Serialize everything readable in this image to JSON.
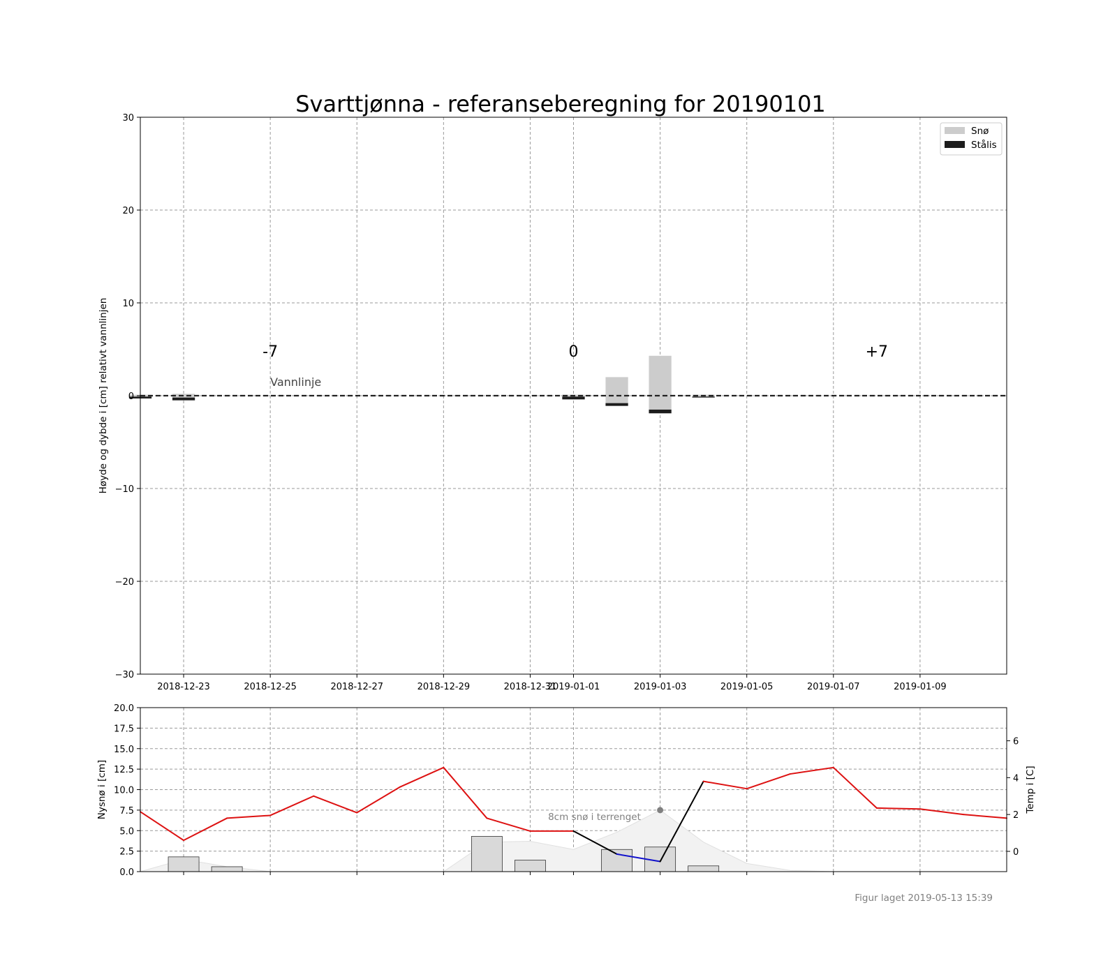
{
  "chart_data": [
    {
      "type": "bar",
      "title": "Svarttjønna - referanseberegning for 20190101",
      "ylabel": "Høyde og dybde i [cm] relativt vannlinjen",
      "ylim": [
        -30,
        30
      ],
      "yticks": [
        "−30",
        "−20",
        "−10",
        "0",
        "10",
        "20",
        "30"
      ],
      "ytick_values": [
        -30,
        -20,
        -10,
        0,
        10,
        20,
        30
      ],
      "x_range": [
        "2018-12-22",
        "2019-01-11"
      ],
      "xtick_labels": [
        "2018-12-23",
        "2018-12-25",
        "2018-12-27",
        "2018-12-29",
        "2018-12-31",
        "2019-01-01",
        "2019-01-03",
        "2019-01-05",
        "2019-01-07",
        "2019-01-09"
      ],
      "xtick_dates": [
        "2018-12-23",
        "2018-12-25",
        "2018-12-27",
        "2018-12-29",
        "2018-12-31",
        "2019-01-01",
        "2019-01-03",
        "2019-01-05",
        "2019-01-07",
        "2019-01-09"
      ],
      "grid": true,
      "legend": {
        "placement": "top-right",
        "entries": [
          {
            "label": "Snø",
            "color": "#cccccc"
          },
          {
            "label": "Stålis",
            "color": "#1c1c1c"
          }
        ]
      },
      "series": [
        {
          "name": "Snø",
          "color": "#cccccc",
          "points": [
            {
              "date": "2018-12-22",
              "top": 0.1,
              "bottom": -0.1
            },
            {
              "date": "2018-12-23",
              "top": 0.2,
              "bottom": -0.2
            },
            {
              "date": "2019-01-01",
              "top": 0.1,
              "bottom": -0.1
            },
            {
              "date": "2019-01-02",
              "top": 2.0,
              "bottom": -0.8
            },
            {
              "date": "2019-01-03",
              "top": 4.3,
              "bottom": -1.5
            },
            {
              "date": "2019-01-04",
              "top": 0.1,
              "bottom": -0.1
            }
          ]
        },
        {
          "name": "Stålis",
          "color": "#1c1c1c",
          "points": [
            {
              "date": "2018-12-22",
              "top": -0.1,
              "bottom": -0.3
            },
            {
              "date": "2018-12-23",
              "top": -0.2,
              "bottom": -0.5
            },
            {
              "date": "2019-01-01",
              "top": -0.1,
              "bottom": -0.4
            },
            {
              "date": "2019-01-02",
              "top": -0.8,
              "bottom": -1.1
            },
            {
              "date": "2019-01-03",
              "top": -1.5,
              "bottom": -1.9
            },
            {
              "date": "2019-01-04",
              "top": -0.1,
              "bottom": -0.2
            }
          ]
        }
      ],
      "waterline": {
        "label": "Vannlinje",
        "y": 0
      },
      "day_markers": [
        {
          "label": "-7",
          "date": "2018-12-25"
        },
        {
          "label": "0",
          "date": "2019-01-01"
        },
        {
          "label": "+7",
          "date": "2019-01-08"
        }
      ]
    },
    {
      "type": "bar",
      "ylabel": "Nysnø i [cm]",
      "ylabel_right": "Temp i [C]",
      "ylim": [
        0,
        20
      ],
      "yticks": [
        "0.0",
        "2.5",
        "5.0",
        "7.5",
        "10.0",
        "12.5",
        "15.0",
        "17.5",
        "20.0"
      ],
      "ytick_values": [
        0,
        2.5,
        5,
        7.5,
        10,
        12.5,
        15,
        17.5,
        20
      ],
      "y2lim": [
        -1.1,
        7.8
      ],
      "y2ticks": [
        "0",
        "2",
        "4",
        "6"
      ],
      "y2tick_values": [
        0,
        2,
        4,
        6
      ],
      "x_range": [
        "2018-12-22",
        "2019-01-11"
      ],
      "xtick_dates": [
        "2018-12-23",
        "2018-12-25",
        "2018-12-27",
        "2018-12-29",
        "2018-12-31",
        "2019-01-01",
        "2019-01-03",
        "2019-01-05",
        "2019-01-07",
        "2019-01-09"
      ],
      "grid": true,
      "new_snow": {
        "dates": [
          "2018-12-23",
          "2018-12-24",
          "2018-12-30",
          "2018-12-31",
          "2019-01-02",
          "2019-01-03",
          "2019-01-04"
        ],
        "values": [
          1.8,
          0.6,
          4.3,
          1.4,
          2.7,
          3.0,
          0.7
        ],
        "color": "#d9d9d9"
      },
      "terrain_snow": {
        "dates": [
          "2018-12-22",
          "2018-12-23",
          "2018-12-24",
          "2018-12-25",
          "2018-12-29",
          "2018-12-30",
          "2018-12-31",
          "2019-01-01",
          "2019-01-02",
          "2019-01-03",
          "2019-01-04",
          "2019-01-05",
          "2019-01-06",
          "2019-01-07"
        ],
        "values": [
          0,
          1.5,
          0.6,
          0,
          0,
          3.6,
          3.7,
          2.7,
          4.8,
          7.5,
          3.6,
          1.0,
          0.15,
          0
        ],
        "color": "#f2f2f2"
      },
      "terrain_point": {
        "date": "2019-01-03",
        "value": 7.5
      },
      "annotation": "8cm snø i terrenget",
      "temperature": {
        "dates": [
          "2018-12-22",
          "2018-12-23",
          "2018-12-24",
          "2018-12-25",
          "2018-12-26",
          "2018-12-27",
          "2018-12-28",
          "2018-12-29",
          "2018-12-30",
          "2018-12-31",
          "2019-01-01",
          "2019-01-02",
          "2019-01-03",
          "2019-01-04",
          "2019-01-05",
          "2019-01-06",
          "2019-01-07",
          "2019-01-08",
          "2019-01-09",
          "2019-01-10",
          "2019-01-11"
        ],
        "values": [
          2.15,
          0.6,
          1.8,
          1.95,
          3.0,
          2.1,
          3.5,
          4.55,
          1.8,
          1.1,
          1.1,
          -0.15,
          -0.55,
          3.8,
          3.4,
          4.2,
          4.55,
          2.35,
          2.3,
          2.0,
          1.8
        ],
        "segment_colors": [
          "#dd1111",
          "#dd1111",
          "#dd1111",
          "#dd1111",
          "#dd1111",
          "#dd1111",
          "#dd1111",
          "#dd1111",
          "#dd1111",
          "#dd1111",
          "#000000",
          "#1111cc",
          "#000000",
          "#dd1111",
          "#dd1111",
          "#dd1111",
          "#dd1111",
          "#dd1111",
          "#dd1111",
          "#dd1111"
        ]
      }
    }
  ],
  "footer": "Figur laget 2019-05-13 15:39"
}
